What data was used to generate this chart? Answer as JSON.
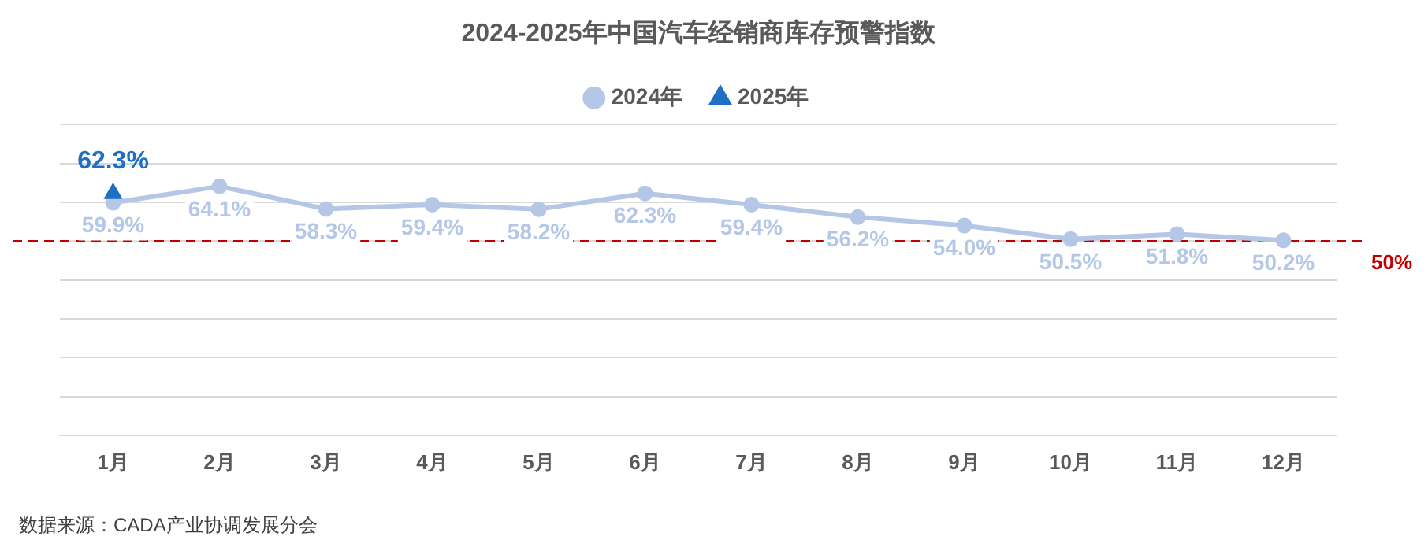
{
  "chart_data": {
    "type": "line",
    "title": "2024-2025年中国汽车经销商库存预警指数",
    "categories": [
      "1月",
      "2月",
      "3月",
      "4月",
      "5月",
      "6月",
      "7月",
      "8月",
      "9月",
      "10月",
      "11月",
      "12月"
    ],
    "series": [
      {
        "name": "2024年",
        "color": "#b4c7e7",
        "marker": "circle",
        "values": [
          59.9,
          64.1,
          58.3,
          59.4,
          58.2,
          62.3,
          59.4,
          56.2,
          54.0,
          50.5,
          51.8,
          50.2
        ],
        "value_labels": [
          "59.9%",
          "64.1%",
          "58.3%",
          "59.4%",
          "58.2%",
          "62.3%",
          "59.4%",
          "56.2%",
          "54.0%",
          "50.5%",
          "51.8%",
          "50.2%"
        ]
      },
      {
        "name": "2025年",
        "color": "#1f6fc5",
        "marker": "triangle",
        "values": [
          62.3,
          null,
          null,
          null,
          null,
          null,
          null,
          null,
          null,
          null,
          null,
          null
        ],
        "value_labels": [
          "62.3%",
          null,
          null,
          null,
          null,
          null,
          null,
          null,
          null,
          null,
          null,
          null
        ]
      }
    ],
    "ylim": [
      0,
      80
    ],
    "yticks": [
      {
        "value": 0,
        "label": null
      },
      {
        "value": 10,
        "label": null
      },
      {
        "value": 20,
        "label": null
      },
      {
        "value": 30,
        "label": null
      },
      {
        "value": 40,
        "label": null
      },
      {
        "value": 50,
        "label": null
      },
      {
        "value": 60,
        "label": null
      },
      {
        "value": 70,
        "label": null
      },
      {
        "value": 80,
        "label": null
      }
    ],
    "tick_labels": "x",
    "grid": "y",
    "legend": "top",
    "ref_lines": [
      {
        "axis": "y",
        "value": 50,
        "label": "50%",
        "color": "#c00000",
        "line_style": "dashed"
      }
    ],
    "annotations": [
      "数据来源：CADA产业协调发展分会"
    ]
  }
}
